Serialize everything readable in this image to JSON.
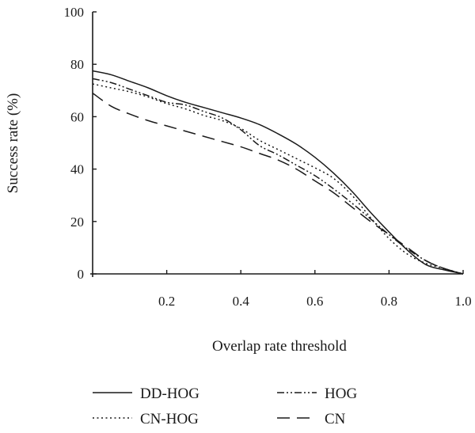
{
  "chart_data": {
    "type": "line",
    "xlabel": "Overlap rate threshold",
    "ylabel": "Success rate (%)",
    "xlim": [
      0,
      1.0
    ],
    "ylim": [
      0,
      100
    ],
    "xticks": [
      0.2,
      0.4,
      0.6,
      0.8,
      1.0
    ],
    "xtick_labels": [
      "0.2",
      "0.4",
      "0.6",
      "0.8",
      "1.0"
    ],
    "yticks": [
      0,
      20,
      40,
      60,
      80,
      100
    ],
    "ytick_labels": [
      "0",
      "20",
      "40",
      "60",
      "80",
      "100"
    ],
    "grid": false,
    "legend_position": "bottom",
    "series": [
      {
        "name": "DD-HOG",
        "style": "solid",
        "x": [
          0,
          0.05,
          0.1,
          0.15,
          0.2,
          0.25,
          0.3,
          0.35,
          0.4,
          0.45,
          0.5,
          0.55,
          0.6,
          0.65,
          0.7,
          0.75,
          0.8,
          0.85,
          0.9,
          0.95,
          1.0
        ],
        "y": [
          77.5,
          76,
          73.5,
          71,
          68,
          65.5,
          63.5,
          61.5,
          59.5,
          57,
          53.5,
          49.5,
          44.5,
          38.5,
          31.5,
          23.5,
          16,
          9,
          3.5,
          1.5,
          0
        ]
      },
      {
        "name": "HOG",
        "style": "dash-dot-dot",
        "x": [
          0,
          0.05,
          0.1,
          0.15,
          0.2,
          0.25,
          0.3,
          0.35,
          0.4,
          0.45,
          0.5,
          0.55,
          0.6,
          0.65,
          0.7,
          0.75,
          0.8,
          0.85,
          0.9,
          0.95,
          1.0
        ],
        "y": [
          74.5,
          73,
          70.5,
          68,
          65.5,
          64.5,
          62,
          59.5,
          55,
          49,
          45.5,
          41.5,
          37.5,
          32.5,
          27,
          21,
          15,
          9.5,
          5,
          2,
          0
        ]
      },
      {
        "name": "CN-HOG",
        "style": "dotted",
        "x": [
          0,
          0.05,
          0.1,
          0.15,
          0.2,
          0.25,
          0.3,
          0.35,
          0.4,
          0.45,
          0.5,
          0.55,
          0.6,
          0.65,
          0.7,
          0.75,
          0.8,
          0.85,
          0.9,
          0.95,
          1.0
        ],
        "y": [
          72.5,
          71,
          69.5,
          67.5,
          65,
          63,
          60.5,
          58.5,
          55.5,
          51,
          47.5,
          44,
          40.5,
          36.5,
          30,
          21.5,
          13.5,
          7.5,
          4,
          2,
          0
        ]
      },
      {
        "name": "CN",
        "style": "dashed",
        "x": [
          0,
          0.05,
          0.1,
          0.15,
          0.2,
          0.25,
          0.3,
          0.35,
          0.4,
          0.45,
          0.5,
          0.55,
          0.6,
          0.65,
          0.7,
          0.75,
          0.8,
          0.85,
          0.9,
          0.95,
          1.0
        ],
        "y": [
          69,
          64,
          61,
          58.5,
          56.5,
          54.5,
          52.5,
          50.5,
          48.5,
          46,
          43.5,
          40,
          35.5,
          31,
          25.5,
          20,
          15,
          10,
          5,
          2,
          0
        ]
      }
    ]
  },
  "colors": {
    "axis": "#1a1a1a",
    "line": "#1a1a1a",
    "background": "#ffffff"
  }
}
